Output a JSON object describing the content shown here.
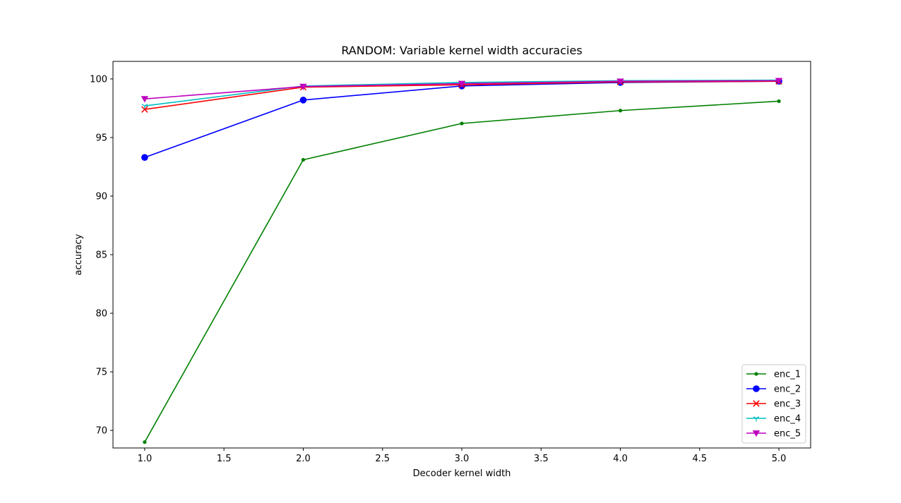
{
  "chart_data": {
    "type": "line",
    "title": "RANDOM: Variable kernel width accuracies",
    "xlabel": "Decoder kernel width",
    "ylabel": "accuracy",
    "x": [
      1.0,
      2.0,
      3.0,
      4.0,
      5.0
    ],
    "xlim": [
      0.8,
      5.2
    ],
    "ylim": [
      68.5,
      101.5
    ],
    "xticks": [
      "1.0",
      "1.5",
      "2.0",
      "2.5",
      "3.0",
      "3.5",
      "4.0",
      "4.5",
      "5.0"
    ],
    "yticks": [
      "70",
      "75",
      "80",
      "85",
      "90",
      "95",
      "100"
    ],
    "grid": false,
    "legend_position": "lower right",
    "series": [
      {
        "name": "enc_1",
        "color": "#008000",
        "marker": "point",
        "values": [
          69.0,
          93.1,
          96.2,
          97.3,
          98.1
        ]
      },
      {
        "name": "enc_2",
        "color": "#0000ff",
        "marker": "circle",
        "values": [
          93.3,
          98.2,
          99.4,
          99.7,
          99.8
        ]
      },
      {
        "name": "enc_3",
        "color": "#ff0000",
        "marker": "x",
        "values": [
          97.4,
          99.3,
          99.5,
          99.75,
          99.8
        ]
      },
      {
        "name": "enc_4",
        "color": "#00bfbf",
        "marker": "tri_down",
        "values": [
          97.7,
          99.4,
          99.7,
          99.85,
          99.9
        ]
      },
      {
        "name": "enc_5",
        "color": "#bf00bf",
        "marker": "triangle_down",
        "values": [
          98.3,
          99.35,
          99.6,
          99.8,
          99.85
        ]
      }
    ]
  }
}
